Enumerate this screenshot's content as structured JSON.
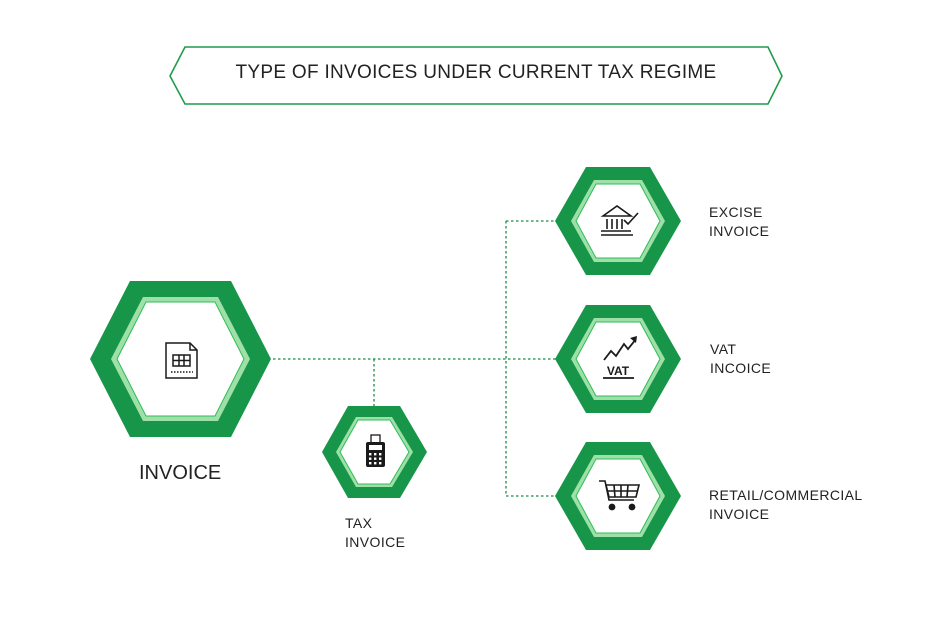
{
  "title": "TYPE OF INVOICES UNDER CURRENT TAX REGIME",
  "colors": {
    "hex_outer": "#17964a",
    "hex_ring": "#9fe0a8",
    "hex_border": "#2cbd57",
    "connector": "#1a8a45",
    "banner_border": "#1f9c4b"
  },
  "nodes": {
    "invoice": {
      "label": "INVOICE",
      "icon": "invoice-document-icon"
    },
    "tax": {
      "label_line1": "TAX",
      "label_line2": "INVOICE",
      "icon": "calculator-receipt-icon"
    },
    "excise": {
      "label_line1": "EXCISE",
      "label_line2": "INVOICE",
      "icon": "bank-check-icon"
    },
    "vat": {
      "label_line1": "VAT",
      "label_line2": "INCOICE",
      "icon": "vat-growth-chart-icon",
      "icon_text": "VAT"
    },
    "retail": {
      "label_line1": "RETAIL/COMMERCIAL",
      "label_line2": "INVOICE",
      "icon": "shopping-cart-icon"
    }
  }
}
